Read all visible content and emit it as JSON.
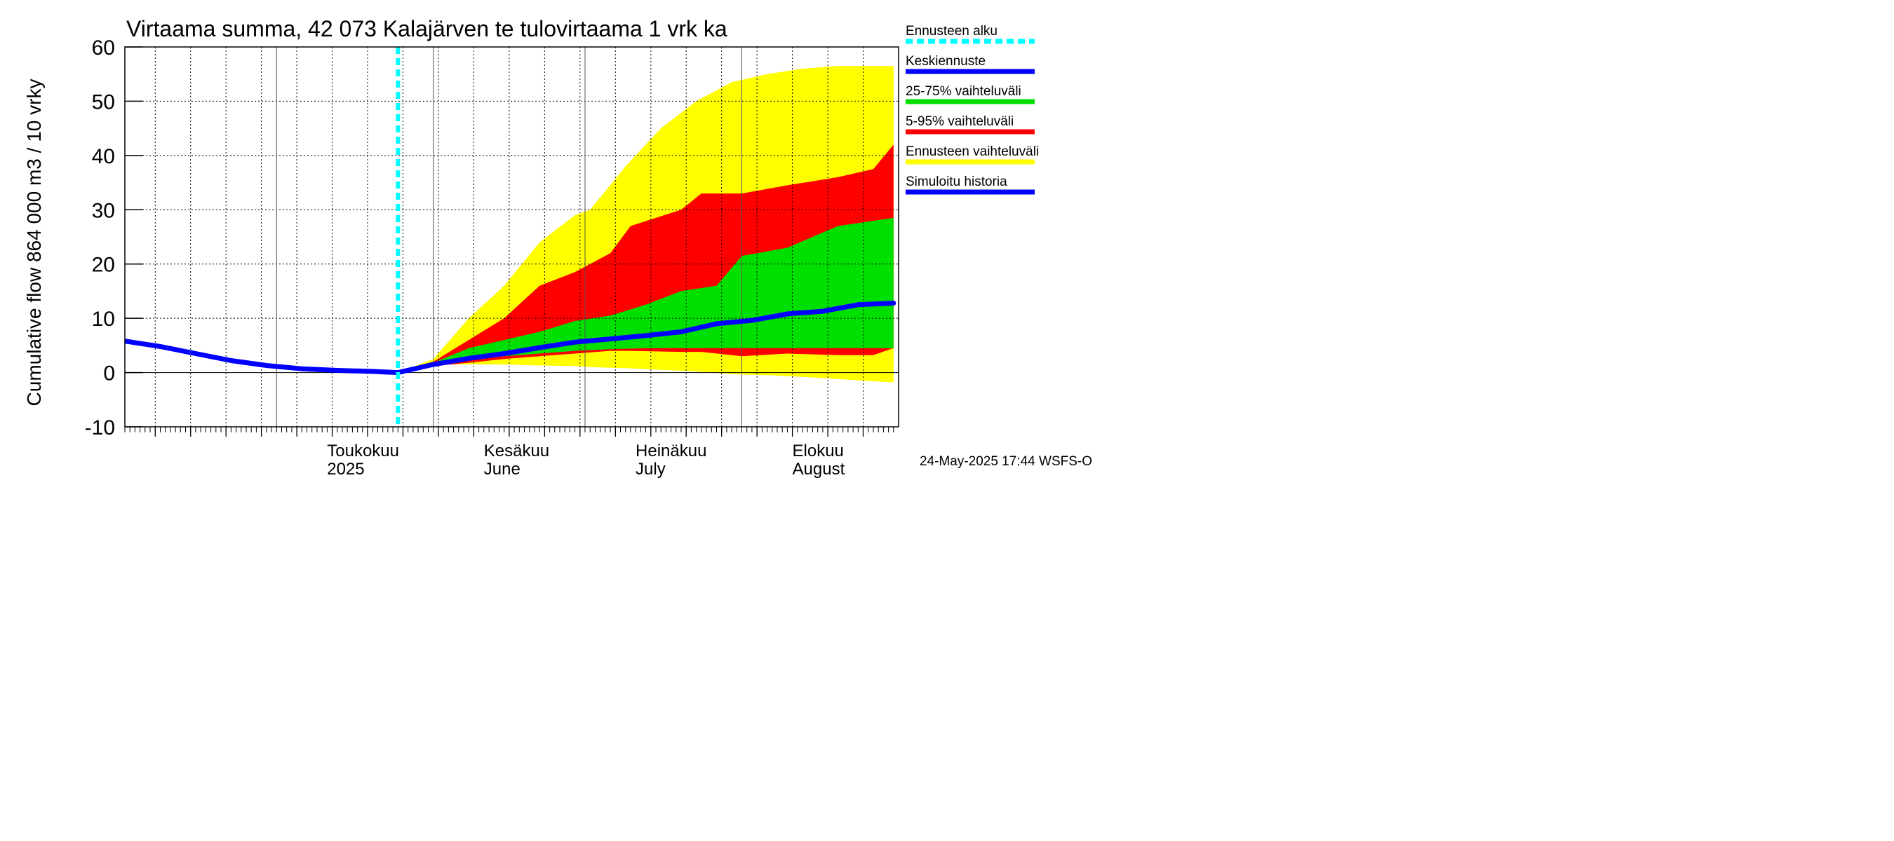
{
  "chart_data": {
    "type": "area",
    "title": "Virtaama summa, 42 073 Kalajärven te tulovirtaama 1 vrk ka",
    "ylabel": "Cumulative flow    864 000 m3 / 10 vrky",
    "ylim": [
      -10,
      60
    ],
    "yticks": [
      -10,
      0,
      10,
      20,
      30,
      40,
      50,
      60
    ],
    "grid": true,
    "legend_position": "right",
    "footer": "24-May-2025 17:44 WSFS-O",
    "x_start": "2025-04-01",
    "x_end": "2025-08-31",
    "forecast_start": "2025-05-25",
    "months": [
      {
        "date": "2025-04-01",
        "fi": "",
        "en": ""
      },
      {
        "date": "2025-05-01",
        "fi": "Toukokuu",
        "en": "2025"
      },
      {
        "date": "2025-06-01",
        "fi": "Kesäkuu",
        "en": "June"
      },
      {
        "date": "2025-07-01",
        "fi": "Heinäkuu",
        "en": "July"
      },
      {
        "date": "2025-08-01",
        "fi": "Elokuu",
        "en": "August"
      }
    ],
    "series": [
      {
        "name": "Ennusteen vaihteluväli",
        "color": "#ffff00",
        "type": "band",
        "x": [
          "2025-05-25",
          "2025-06-01",
          "2025-06-08",
          "2025-06-15",
          "2025-06-22",
          "2025-06-29",
          "2025-07-02",
          "2025-07-09",
          "2025-07-16",
          "2025-07-23",
          "2025-07-30",
          "2025-08-06",
          "2025-08-13",
          "2025-08-20",
          "2025-08-27",
          "2025-08-31"
        ],
        "upper": [
          0,
          2.5,
          10,
          16,
          24,
          29,
          30,
          38,
          45,
          50,
          53.5,
          55,
          56,
          56.5,
          56.5,
          56.5
        ],
        "lower": [
          0,
          1.5,
          1.5,
          1.5,
          1.3,
          1.2,
          1.0,
          0.8,
          0.5,
          0.2,
          -0.3,
          -0.5,
          -0.8,
          -1.2,
          -1.6,
          -1.8
        ]
      },
      {
        "name": "5-95% vaihteluväli",
        "color": "#ff0000",
        "type": "band",
        "x": [
          "2025-05-25",
          "2025-06-01",
          "2025-06-08",
          "2025-06-15",
          "2025-06-22",
          "2025-06-29",
          "2025-07-06",
          "2025-07-10",
          "2025-07-20",
          "2025-07-24",
          "2025-08-01",
          "2025-08-10",
          "2025-08-20",
          "2025-08-27",
          "2025-08-31"
        ],
        "upper": [
          0,
          2,
          6,
          10,
          16,
          18.5,
          22,
          27,
          30,
          33,
          33,
          34.5,
          36,
          37.5,
          42
        ],
        "lower": [
          0,
          1.2,
          1.8,
          2.5,
          3.0,
          3.5,
          4.0,
          4.0,
          3.8,
          3.8,
          3.0,
          3.5,
          3.2,
          3.2,
          4.5
        ]
      },
      {
        "name": "25-75% vaihteluväli",
        "color": "#00e000",
        "type": "band",
        "x": [
          "2025-05-25",
          "2025-06-01",
          "2025-06-08",
          "2025-06-15",
          "2025-06-22",
          "2025-06-29",
          "2025-07-06",
          "2025-07-13",
          "2025-07-20",
          "2025-07-27",
          "2025-08-01",
          "2025-08-10",
          "2025-08-20",
          "2025-08-31"
        ],
        "upper": [
          0,
          1.8,
          4.5,
          6,
          7.5,
          9.5,
          10.5,
          12.5,
          15,
          16,
          21.5,
          23,
          27,
          28.5
        ],
        "lower": [
          0,
          1.4,
          2.4,
          3.0,
          3.5,
          4.0,
          4.3,
          4.5,
          4.5,
          4.5,
          4.5,
          4.5,
          4.5,
          4.5
        ]
      },
      {
        "name": "Keskiennuste",
        "color": "#0000ff",
        "type": "line",
        "x": [
          "2025-05-25",
          "2025-06-01",
          "2025-06-08",
          "2025-06-15",
          "2025-06-22",
          "2025-06-29",
          "2025-07-06",
          "2025-07-13",
          "2025-07-20",
          "2025-07-27",
          "2025-08-03",
          "2025-08-10",
          "2025-08-17",
          "2025-08-24",
          "2025-08-31"
        ],
        "values": [
          0,
          1.5,
          2.6,
          3.5,
          4.6,
          5.6,
          6.2,
          6.8,
          7.5,
          9.0,
          9.6,
          10.8,
          11.3,
          12.5,
          12.8
        ]
      },
      {
        "name": "Simuloitu historia",
        "color": "#0000ff",
        "type": "line",
        "x": [
          "2025-04-01",
          "2025-04-08",
          "2025-04-15",
          "2025-04-22",
          "2025-04-29",
          "2025-05-06",
          "2025-05-13",
          "2025-05-20",
          "2025-05-25"
        ],
        "values": [
          5.8,
          4.8,
          3.5,
          2.2,
          1.3,
          0.7,
          0.4,
          0.2,
          0
        ]
      },
      {
        "name": "Ennusteen alku",
        "color": "#00ffff",
        "type": "vline"
      }
    ],
    "legend": [
      {
        "name": "Ennusteen alku",
        "color": "#00ffff",
        "dashed": true
      },
      {
        "name": "Keskiennuste",
        "color": "#0000ff"
      },
      {
        "name": "25-75% vaihteluväli",
        "color": "#00e000"
      },
      {
        "name": "5-95% vaihteluväli",
        "color": "#ff0000"
      },
      {
        "name": "Ennusteen vaihteluväli",
        "color": "#ffff00"
      },
      {
        "name": "Simuloitu historia",
        "color": "#0000ff"
      }
    ]
  }
}
